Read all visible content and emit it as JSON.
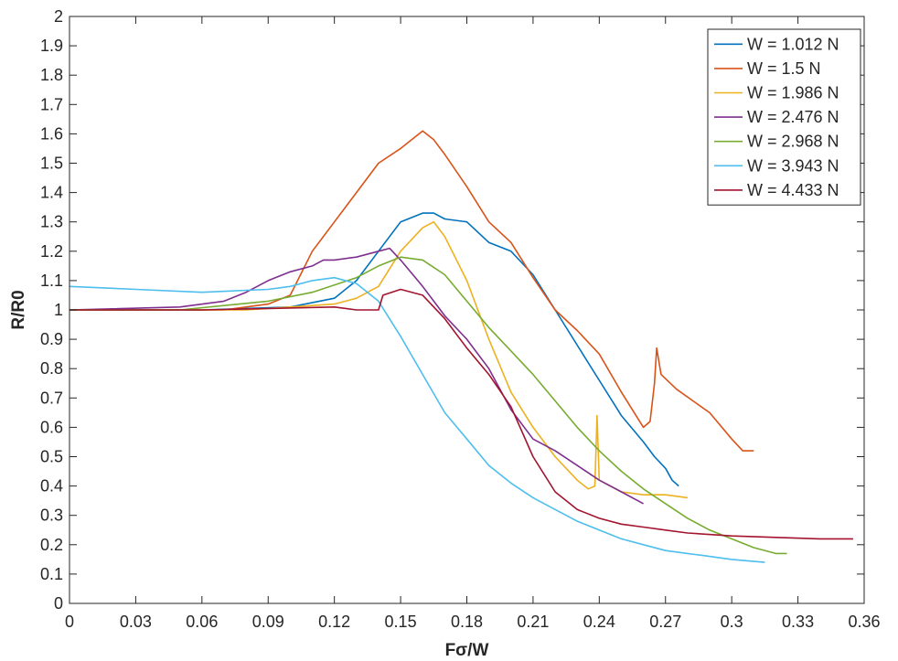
{
  "chart_data": {
    "type": "line",
    "xlabel": "Fσ/W",
    "ylabel": "R/R0",
    "xlim": [
      0,
      0.36
    ],
    "ylim": [
      0,
      2
    ],
    "xticks": [
      0,
      0.03,
      0.06,
      0.09,
      0.12,
      0.15,
      0.18,
      0.21,
      0.24,
      0.27,
      0.3,
      0.33,
      0.36
    ],
    "xtick_labels": [
      "0",
      "0.03",
      "0.06",
      "0.09",
      "0.12",
      "0.15",
      "0.18",
      "0.21",
      "0.24",
      "0.27",
      "0.3",
      "0.33",
      "0.36"
    ],
    "yticks": [
      0,
      0.1,
      0.2,
      0.3,
      0.4,
      0.5,
      0.6,
      0.7,
      0.8,
      0.9,
      1,
      1.1,
      1.2,
      1.3,
      1.4,
      1.5,
      1.6,
      1.7,
      1.8,
      1.9,
      2
    ],
    "ytick_labels": [
      "0",
      "0.1",
      "0.2",
      "0.3",
      "0.4",
      "0.5",
      "0.6",
      "0.7",
      "0.8",
      "0.9",
      "1",
      "1.1",
      "1.2",
      "1.3",
      "1.4",
      "1.5",
      "1.6",
      "1.7",
      "1.8",
      "1.9",
      "2"
    ],
    "grid": false,
    "legend_position": "top-right",
    "series": [
      {
        "name": "W = 1.012 N",
        "color": "#0072BD",
        "points": [
          [
            0,
            1.0
          ],
          [
            0.06,
            1.0
          ],
          [
            0.1,
            1.01
          ],
          [
            0.12,
            1.04
          ],
          [
            0.13,
            1.1
          ],
          [
            0.14,
            1.2
          ],
          [
            0.15,
            1.3
          ],
          [
            0.16,
            1.33
          ],
          [
            0.165,
            1.33
          ],
          [
            0.17,
            1.31
          ],
          [
            0.18,
            1.3
          ],
          [
            0.19,
            1.23
          ],
          [
            0.2,
            1.2
          ],
          [
            0.21,
            1.12
          ],
          [
            0.22,
            1.0
          ],
          [
            0.23,
            0.88
          ],
          [
            0.24,
            0.76
          ],
          [
            0.25,
            0.64
          ],
          [
            0.26,
            0.55
          ],
          [
            0.265,
            0.5
          ],
          [
            0.27,
            0.46
          ],
          [
            0.273,
            0.42
          ],
          [
            0.276,
            0.4
          ]
        ]
      },
      {
        "name": "W = 1.5 N",
        "color": "#D95319",
        "points": [
          [
            0,
            1.0
          ],
          [
            0.07,
            1.0
          ],
          [
            0.09,
            1.02
          ],
          [
            0.1,
            1.05
          ],
          [
            0.11,
            1.2
          ],
          [
            0.12,
            1.3
          ],
          [
            0.13,
            1.4
          ],
          [
            0.14,
            1.5
          ],
          [
            0.15,
            1.55
          ],
          [
            0.16,
            1.61
          ],
          [
            0.165,
            1.58
          ],
          [
            0.17,
            1.53
          ],
          [
            0.18,
            1.42
          ],
          [
            0.19,
            1.3
          ],
          [
            0.2,
            1.23
          ],
          [
            0.21,
            1.11
          ],
          [
            0.22,
            1.0
          ],
          [
            0.23,
            0.93
          ],
          [
            0.24,
            0.85
          ],
          [
            0.25,
            0.72
          ],
          [
            0.26,
            0.6
          ],
          [
            0.263,
            0.62
          ],
          [
            0.265,
            0.75
          ],
          [
            0.266,
            0.87
          ],
          [
            0.268,
            0.78
          ],
          [
            0.275,
            0.73
          ],
          [
            0.29,
            0.65
          ],
          [
            0.3,
            0.56
          ],
          [
            0.305,
            0.52
          ],
          [
            0.31,
            0.52
          ]
        ]
      },
      {
        "name": "W = 1.986 N",
        "color": "#EDB120",
        "points": [
          [
            0,
            1.0
          ],
          [
            0.08,
            1.0
          ],
          [
            0.1,
            1.01
          ],
          [
            0.12,
            1.02
          ],
          [
            0.13,
            1.04
          ],
          [
            0.14,
            1.08
          ],
          [
            0.15,
            1.2
          ],
          [
            0.16,
            1.28
          ],
          [
            0.165,
            1.3
          ],
          [
            0.17,
            1.25
          ],
          [
            0.18,
            1.1
          ],
          [
            0.19,
            0.9
          ],
          [
            0.2,
            0.72
          ],
          [
            0.21,
            0.6
          ],
          [
            0.22,
            0.5
          ],
          [
            0.23,
            0.42
          ],
          [
            0.235,
            0.39
          ],
          [
            0.238,
            0.4
          ],
          [
            0.239,
            0.64
          ],
          [
            0.24,
            0.42
          ],
          [
            0.25,
            0.38
          ],
          [
            0.26,
            0.37
          ],
          [
            0.27,
            0.37
          ],
          [
            0.28,
            0.36
          ]
        ]
      },
      {
        "name": "W = 2.476 N",
        "color": "#7E2F8E",
        "points": [
          [
            0,
            1.0
          ],
          [
            0.05,
            1.01
          ],
          [
            0.07,
            1.03
          ],
          [
            0.08,
            1.06
          ],
          [
            0.09,
            1.1
          ],
          [
            0.1,
            1.13
          ],
          [
            0.11,
            1.15
          ],
          [
            0.115,
            1.17
          ],
          [
            0.12,
            1.17
          ],
          [
            0.13,
            1.18
          ],
          [
            0.14,
            1.2
          ],
          [
            0.145,
            1.21
          ],
          [
            0.15,
            1.17
          ],
          [
            0.16,
            1.08
          ],
          [
            0.17,
            0.98
          ],
          [
            0.18,
            0.9
          ],
          [
            0.19,
            0.8
          ],
          [
            0.2,
            0.66
          ],
          [
            0.21,
            0.56
          ],
          [
            0.22,
            0.52
          ],
          [
            0.23,
            0.47
          ],
          [
            0.24,
            0.42
          ],
          [
            0.25,
            0.38
          ],
          [
            0.26,
            0.34
          ]
        ]
      },
      {
        "name": "W = 2.968 N",
        "color": "#77AC30",
        "points": [
          [
            0,
            1.0
          ],
          [
            0.05,
            1.0
          ],
          [
            0.09,
            1.03
          ],
          [
            0.11,
            1.06
          ],
          [
            0.13,
            1.11
          ],
          [
            0.14,
            1.15
          ],
          [
            0.15,
            1.18
          ],
          [
            0.16,
            1.17
          ],
          [
            0.17,
            1.12
          ],
          [
            0.18,
            1.03
          ],
          [
            0.19,
            0.94
          ],
          [
            0.2,
            0.86
          ],
          [
            0.21,
            0.78
          ],
          [
            0.22,
            0.69
          ],
          [
            0.23,
            0.6
          ],
          [
            0.24,
            0.52
          ],
          [
            0.25,
            0.45
          ],
          [
            0.26,
            0.39
          ],
          [
            0.27,
            0.34
          ],
          [
            0.28,
            0.29
          ],
          [
            0.29,
            0.25
          ],
          [
            0.3,
            0.22
          ],
          [
            0.31,
            0.19
          ],
          [
            0.32,
            0.17
          ],
          [
            0.325,
            0.17
          ]
        ]
      },
      {
        "name": "W = 3.943 N",
        "color": "#4DBEEE",
        "points": [
          [
            0,
            1.08
          ],
          [
            0.03,
            1.07
          ],
          [
            0.06,
            1.06
          ],
          [
            0.09,
            1.07
          ],
          [
            0.1,
            1.08
          ],
          [
            0.11,
            1.1
          ],
          [
            0.12,
            1.11
          ],
          [
            0.13,
            1.09
          ],
          [
            0.14,
            1.03
          ],
          [
            0.15,
            0.91
          ],
          [
            0.16,
            0.78
          ],
          [
            0.17,
            0.65
          ],
          [
            0.18,
            0.56
          ],
          [
            0.19,
            0.47
          ],
          [
            0.2,
            0.41
          ],
          [
            0.21,
            0.36
          ],
          [
            0.22,
            0.32
          ],
          [
            0.23,
            0.28
          ],
          [
            0.24,
            0.25
          ],
          [
            0.25,
            0.22
          ],
          [
            0.26,
            0.2
          ],
          [
            0.27,
            0.18
          ],
          [
            0.28,
            0.17
          ],
          [
            0.29,
            0.16
          ],
          [
            0.3,
            0.15
          ],
          [
            0.315,
            0.14
          ]
        ]
      },
      {
        "name": "W = 4.433 N",
        "color": "#A2142F",
        "points": [
          [
            0,
            1.0
          ],
          [
            0.06,
            1.0
          ],
          [
            0.12,
            1.01
          ],
          [
            0.13,
            1.0
          ],
          [
            0.14,
            1.0
          ],
          [
            0.142,
            1.05
          ],
          [
            0.15,
            1.07
          ],
          [
            0.16,
            1.05
          ],
          [
            0.17,
            0.97
          ],
          [
            0.18,
            0.87
          ],
          [
            0.19,
            0.78
          ],
          [
            0.2,
            0.67
          ],
          [
            0.21,
            0.5
          ],
          [
            0.22,
            0.38
          ],
          [
            0.23,
            0.32
          ],
          [
            0.24,
            0.29
          ],
          [
            0.25,
            0.27
          ],
          [
            0.26,
            0.26
          ],
          [
            0.27,
            0.25
          ],
          [
            0.28,
            0.24
          ],
          [
            0.3,
            0.23
          ],
          [
            0.32,
            0.225
          ],
          [
            0.34,
            0.22
          ],
          [
            0.355,
            0.22
          ]
        ]
      }
    ]
  }
}
